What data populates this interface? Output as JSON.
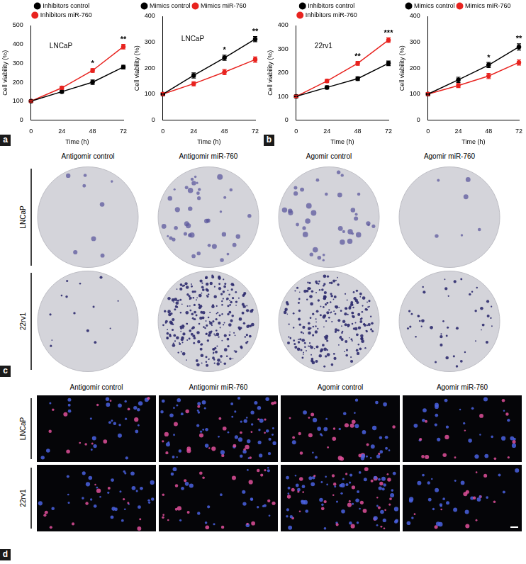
{
  "chart_data": [
    {
      "type": "line",
      "x": [
        0,
        24,
        48,
        72
      ],
      "xlim": [
        0,
        72
      ],
      "xticks": [
        0,
        24,
        48,
        72
      ],
      "ylim": [
        0,
        500
      ],
      "yticks": [
        0,
        100,
        200,
        300,
        400,
        500
      ],
      "x_label": "Time (h)",
      "y_label": "Cell viability (%)",
      "legend": "top",
      "grid": false,
      "annotations": [
        {
          "text": "LNCaP"
        },
        {
          "x": 48,
          "text": "*"
        },
        {
          "x": 72,
          "text": "**"
        }
      ],
      "series": [
        {
          "name": "Inhibitors control",
          "color": "#000000",
          "marker": "circle",
          "values": [
            100,
            150,
            200,
            280
          ],
          "errors": [
            5,
            8,
            12,
            10
          ]
        },
        {
          "name": "Inhibitors miR-760",
          "color": "#e8231f",
          "marker": "circle",
          "values": [
            100,
            170,
            262,
            388
          ],
          "errors": [
            5,
            8,
            10,
            12
          ]
        }
      ]
    },
    {
      "type": "line",
      "x": [
        0,
        24,
        48,
        72
      ],
      "xlim": [
        0,
        72
      ],
      "xticks": [
        0,
        24,
        48,
        72
      ],
      "ylim": [
        0,
        400
      ],
      "yticks": [
        0,
        100,
        200,
        300,
        400
      ],
      "x_label": "Time (h)",
      "y_label": "Cell viability (%)",
      "legend": "top",
      "grid": false,
      "annotations": [
        {
          "text": "LNCaP"
        },
        {
          "x": 48,
          "text": "*"
        },
        {
          "x": 72,
          "text": "**"
        }
      ],
      "series": [
        {
          "name": "Mimics control",
          "color": "#000000",
          "marker": "circle",
          "values": [
            100,
            172,
            240,
            312
          ],
          "errors": [
            6,
            10,
            10,
            10
          ]
        },
        {
          "name": "Mimics miR-760",
          "color": "#e8231f",
          "marker": "circle",
          "values": [
            100,
            140,
            185,
            233
          ],
          "errors": [
            6,
            8,
            10,
            10
          ]
        }
      ]
    },
    {
      "type": "line",
      "x": [
        0,
        24,
        48,
        72
      ],
      "xlim": [
        0,
        72
      ],
      "xticks": [
        0,
        24,
        48,
        72
      ],
      "ylim": [
        0,
        400
      ],
      "yticks": [
        0,
        100,
        200,
        300,
        400
      ],
      "x_label": "Time (h)",
      "y_label": "Cell viability (%)",
      "legend": "top",
      "grid": false,
      "annotations": [
        {
          "text": "22rv1"
        },
        {
          "x": 48,
          "text": "**"
        },
        {
          "x": 72,
          "text": "***"
        }
      ],
      "series": [
        {
          "name": "Inhibitors control",
          "color": "#000000",
          "marker": "circle",
          "values": [
            100,
            138,
            175,
            240
          ],
          "errors": [
            5,
            7,
            8,
            10
          ]
        },
        {
          "name": "Inhibitors miR-760",
          "color": "#e8231f",
          "marker": "circle",
          "values": [
            100,
            165,
            240,
            338
          ],
          "errors": [
            5,
            7,
            8,
            10
          ]
        }
      ]
    },
    {
      "type": "line",
      "x": [
        0,
        24,
        48,
        72
      ],
      "xlim": [
        0,
        72
      ],
      "xticks": [
        0,
        24,
        48,
        72
      ],
      "ylim": [
        0,
        400
      ],
      "yticks": [
        0,
        100,
        200,
        300,
        400
      ],
      "x_label": "Time (h)",
      "y_label": "Cell viability (%)",
      "legend": "top",
      "grid": false,
      "annotations": [
        {
          "x": 48,
          "text": "*"
        },
        {
          "x": 72,
          "text": "**"
        }
      ],
      "series": [
        {
          "name": "Mimics control",
          "color": "#000000",
          "marker": "circle",
          "values": [
            100,
            155,
            212,
            282
          ],
          "errors": [
            6,
            10,
            10,
            12
          ]
        },
        {
          "name": "Mimics miR-760",
          "color": "#e8231f",
          "marker": "circle",
          "values": [
            100,
            133,
            170,
            222
          ],
          "errors": [
            6,
            8,
            10,
            10
          ]
        }
      ]
    }
  ],
  "chart_panels": [
    "a",
    "b"
  ],
  "image_panels": [
    {
      "panel": "c",
      "columns": [
        "Antigomir control",
        "Antigomir miR-760",
        "Agomir control",
        "Agomir miR-760"
      ],
      "rows": [
        "LNCaP",
        "22rv1"
      ]
    },
    {
      "panel": "d",
      "columns": [
        "Antigomir control",
        "Antigomir miR-760",
        "Agomir control",
        "Agomir miR-760"
      ],
      "rows": [
        "LNCaP",
        "22rv1"
      ]
    }
  ]
}
